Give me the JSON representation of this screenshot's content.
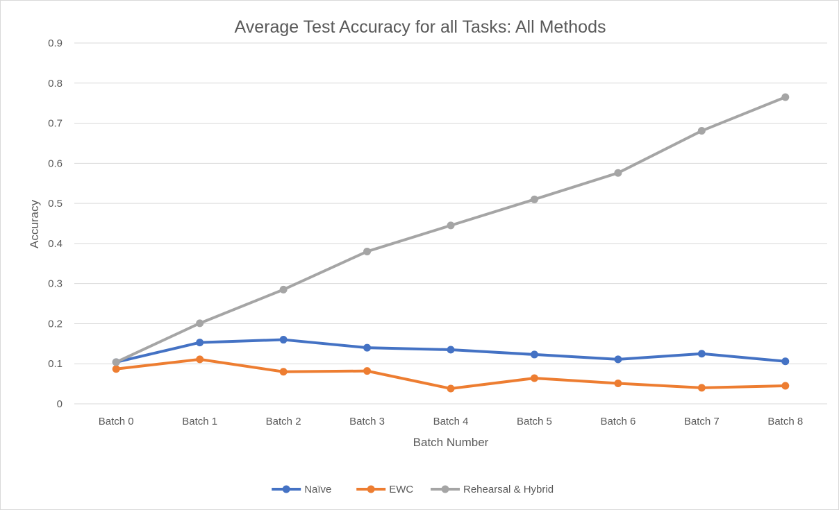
{
  "chart_data": {
    "type": "line",
    "title": "Average Test Accuracy for all Tasks: All Methods",
    "xlabel": "Batch Number",
    "ylabel": "Accuracy",
    "categories": [
      "Batch 0",
      "Batch 1",
      "Batch 2",
      "Batch 3",
      "Batch 4",
      "Batch 5",
      "Batch 6",
      "Batch 7",
      "Batch 8"
    ],
    "ylim": [
      0,
      0.9
    ],
    "yticks": [
      0,
      0.1,
      0.2,
      0.3,
      0.4,
      0.5,
      0.6,
      0.7,
      0.8,
      0.9
    ],
    "grid": true,
    "legend_position": "bottom",
    "series": [
      {
        "name": "Naïve",
        "color": "#4472c4",
        "values": [
          0.104,
          0.153,
          0.16,
          0.14,
          0.135,
          0.123,
          0.111,
          0.125,
          0.106
        ]
      },
      {
        "name": "EWC",
        "color": "#ed7d31",
        "values": [
          0.087,
          0.111,
          0.08,
          0.082,
          0.038,
          0.064,
          0.051,
          0.04,
          0.045
        ]
      },
      {
        "name": "Rehearsal & Hybrid",
        "color": "#a5a5a5",
        "values": [
          0.104,
          0.201,
          0.285,
          0.38,
          0.445,
          0.51,
          0.576,
          0.681,
          0.765
        ]
      }
    ]
  }
}
